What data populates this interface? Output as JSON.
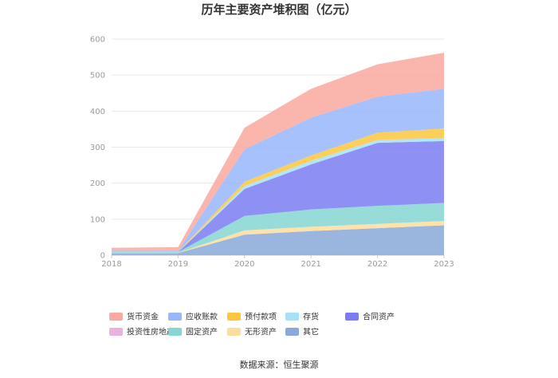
{
  "chart_data": {
    "type": "area",
    "stacked": true,
    "title": "历年主要资产堆积图（亿元）",
    "source": "数据来源：恒生聚源",
    "x": [
      "2018",
      "2019",
      "2020",
      "2021",
      "2022",
      "2023"
    ],
    "ylim": [
      0,
      600
    ],
    "yticks": [
      "0",
      "100",
      "200",
      "300",
      "400",
      "500",
      "600"
    ],
    "grid": true,
    "legend_position": "bottom",
    "stack_order_bottom_to_top": [
      "其它",
      "无形资产",
      "固定资产",
      "投资性房地产",
      "合同资产",
      "存货",
      "预付款项",
      "应收账款",
      "货币资金"
    ],
    "series": [
      {
        "name": "货币资金",
        "color": "#f9a99f",
        "values": [
          8,
          10,
          60,
          80,
          90,
          100
        ]
      },
      {
        "name": "应收账款",
        "color": "#97b6fb",
        "values": [
          3,
          3,
          90,
          105,
          100,
          110
        ]
      },
      {
        "name": "预付款项",
        "color": "#fcc73d",
        "values": [
          0.5,
          0.5,
          12,
          15,
          20,
          27
        ]
      },
      {
        "name": "存货",
        "color": "#a6e0fb",
        "values": [
          0.5,
          0.5,
          8,
          10,
          8,
          8
        ]
      },
      {
        "name": "合同资产",
        "color": "#7b7cf2",
        "values": [
          0,
          0,
          75,
          125,
          175,
          172
        ]
      },
      {
        "name": "投资性房地产",
        "color": "#e8b3dd",
        "values": [
          0,
          0,
          0,
          0,
          0,
          0
        ]
      },
      {
        "name": "固定资产",
        "color": "#86d6d3",
        "values": [
          2,
          2,
          40,
          48,
          50,
          50
        ]
      },
      {
        "name": "无形资产",
        "color": "#fddd9c",
        "values": [
          0.5,
          0.5,
          12,
          12,
          12,
          12
        ]
      },
      {
        "name": "其它",
        "color": "#8aa9d8",
        "values": [
          6,
          6,
          57,
          67,
          75,
          83
        ]
      }
    ]
  }
}
